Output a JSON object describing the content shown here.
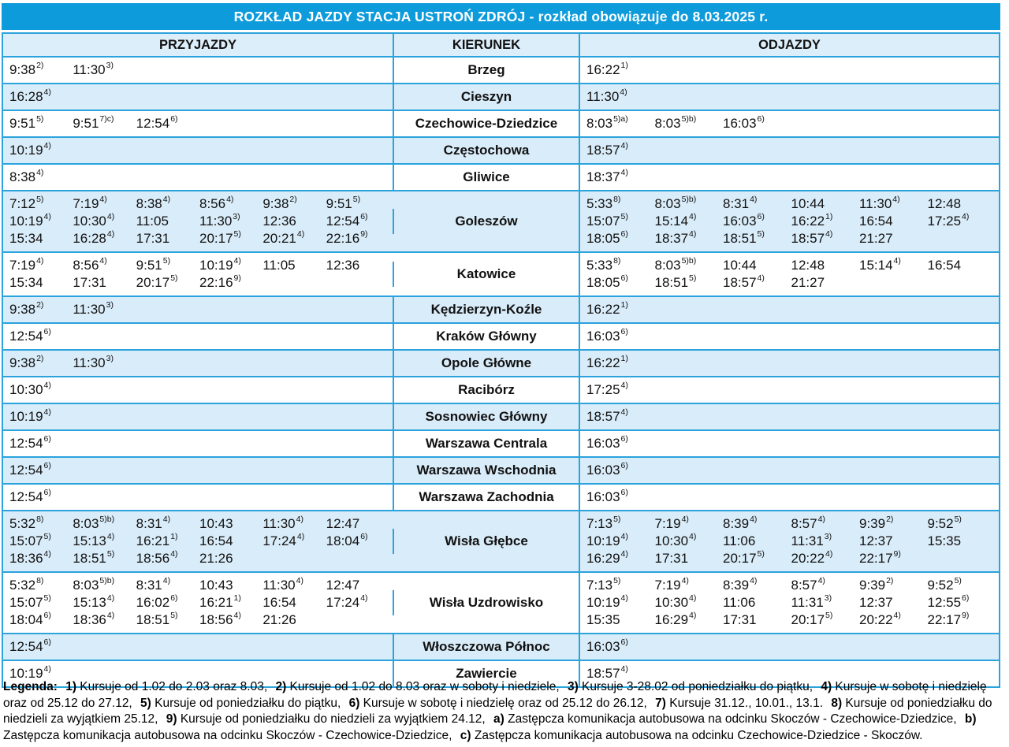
{
  "title": "ROZKŁAD JAZDY STACJA USTROŃ ZDRÓJ - rozkład obowiązuje do 8.03.2025 r.",
  "station": "Ustroń Zdrój",
  "valid_until": "8.03.2025",
  "columns": {
    "arrivals": "PRZYJAZDY",
    "direction": "KIERUNEK",
    "departures": "ODJAZDY"
  },
  "colors": {
    "title_bar": "#0e9bdb",
    "border": "#2ba3dc",
    "shaded_row": "#d9ecf9",
    "header_row": "#dceefa",
    "text": "#111111",
    "title_text": "#ffffff"
  },
  "rows": [
    {
      "direction": "Brzeg",
      "arrivals": [
        "9:38^2)",
        "11:30^3)"
      ],
      "departures": [
        "16:22^1)"
      ]
    },
    {
      "direction": "Cieszyn",
      "arrivals": [
        "16:28^4)"
      ],
      "departures": [
        "11:30^4)"
      ]
    },
    {
      "direction": "Czechowice-Dziedzice",
      "arrivals": [
        "9:51^5)",
        "9:51^7)c)",
        "12:54^6)"
      ],
      "departures": [
        "8:03^5)a)",
        "8:03^5)b)",
        "16:03^6)"
      ]
    },
    {
      "direction": "Częstochowa",
      "arrivals": [
        "10:19^4)"
      ],
      "departures": [
        "18:57^4)"
      ]
    },
    {
      "direction": "Gliwice",
      "arrivals": [
        "8:38^4)"
      ],
      "departures": [
        "18:37^4)"
      ]
    },
    {
      "direction": "Goleszów",
      "arrivals": [
        "7:12^5)",
        "7:19^4)",
        "8:38^4)",
        "8:56^4)",
        "9:38^2)",
        "9:51^5)",
        "10:19^4)",
        "10:30^4)",
        "11:05",
        "11:30^3)",
        "12:36",
        "12:54^6)",
        "15:34",
        "16:28^4)",
        "17:31",
        "20:17^5)",
        "20:21^4)",
        "22:16^9)"
      ],
      "departures": [
        "5:33^8)",
        "8:03^5)b)",
        "8:31^4)",
        "10:44",
        "11:30^4)",
        "12:48",
        "15:07^5)",
        "15:14^4)",
        "16:03^6)",
        "16:22^1)",
        "16:54",
        "17:25^4)",
        "18:05^6)",
        "18:37^4)",
        "18:51^5)",
        "18:57^4)",
        "21:27"
      ]
    },
    {
      "direction": "Katowice",
      "arrivals": [
        "7:19^4)",
        "8:56^4)",
        "9:51^5)",
        "10:19^4)",
        "11:05",
        "12:36",
        "15:34",
        "17:31",
        "20:17^5)",
        "22:16^9)"
      ],
      "departures": [
        "5:33^8)",
        "8:03^5)b)",
        "10:44",
        "12:48",
        "15:14^4)",
        "16:54",
        "18:05^6)",
        "18:51^5)",
        "18:57^4)",
        "21:27"
      ]
    },
    {
      "direction": "Kędzierzyn-Koźle",
      "arrivals": [
        "9:38^2)",
        "11:30^3)"
      ],
      "departures": [
        "16:22^1)"
      ]
    },
    {
      "direction": "Kraków Główny",
      "arrivals": [
        "12:54^6)"
      ],
      "departures": [
        "16:03^6)"
      ]
    },
    {
      "direction": "Opole Główne",
      "arrivals": [
        "9:38^2)",
        "11:30^3)"
      ],
      "departures": [
        "16:22^1)"
      ]
    },
    {
      "direction": "Racibórz",
      "arrivals": [
        "10:30^4)"
      ],
      "departures": [
        "17:25^4)"
      ]
    },
    {
      "direction": "Sosnowiec Główny",
      "arrivals": [
        "10:19^4)"
      ],
      "departures": [
        "18:57^4)"
      ]
    },
    {
      "direction": "Warszawa Centrala",
      "arrivals": [
        "12:54^6)"
      ],
      "departures": [
        "16:03^6)"
      ]
    },
    {
      "direction": "Warszawa Wschodnia",
      "arrivals": [
        "12:54^6)"
      ],
      "departures": [
        "16:03^6)"
      ]
    },
    {
      "direction": "Warszawa Zachodnia",
      "arrivals": [
        "12:54^6)"
      ],
      "departures": [
        "16:03^6)"
      ]
    },
    {
      "direction": "Wisła Głębce",
      "arrivals": [
        "5:32^8)",
        "8:03^5)b)",
        "8:31^4)",
        "10:43",
        "11:30^4)",
        "12:47",
        "15:07^5)",
        "15:13^4)",
        "16:21^1)",
        "16:54",
        "17:24^4)",
        "18:04^6)",
        "18:36^4)",
        "18:51^5)",
        "18:56^4)",
        "21:26"
      ],
      "departures": [
        "7:13^5)",
        "7:19^4)",
        "8:39^4)",
        "8:57^4)",
        "9:39^2)",
        "9:52^5)",
        "10:19^4)",
        "10:30^4)",
        "11:06",
        "11:31^3)",
        "12:37",
        "15:35",
        "16:29^4)",
        "17:31",
        "20:17^5)",
        "20:22^4)",
        "22:17^9)"
      ]
    },
    {
      "direction": "Wisła Uzdrowisko",
      "arrivals": [
        "5:32^8)",
        "8:03^5)b)",
        "8:31^4)",
        "10:43",
        "11:30^4)",
        "12:47",
        "15:07^5)",
        "15:13^4)",
        "16:02^6)",
        "16:21^1)",
        "16:54",
        "17:24^4)",
        "18:04^6)",
        "18:36^4)",
        "18:51^5)",
        "18:56^4)",
        "21:26"
      ],
      "departures": [
        "7:13^5)",
        "7:19^4)",
        "8:39^4)",
        "8:57^4)",
        "9:39^2)",
        "9:52^5)",
        "10:19^4)",
        "10:30^4)",
        "11:06",
        "11:31^3)",
        "12:37",
        "12:55^6)",
        "15:35",
        "16:29^4)",
        "17:31",
        "20:17^5)",
        "20:22^4)",
        "22:17^9)"
      ]
    },
    {
      "direction": "Włoszczowa Północ",
      "arrivals": [
        "12:54^6)"
      ],
      "departures": [
        "16:03^6)"
      ]
    },
    {
      "direction": "Zawiercie",
      "arrivals": [
        "10:19^4)"
      ],
      "departures": [
        "18:57^4)"
      ]
    }
  ],
  "legend": {
    "label": "Legenda:",
    "items": [
      {
        "key": "1)",
        "text": "Kursuje od 1.02 do 2.03 oraz 8.03,"
      },
      {
        "key": "2)",
        "text": "Kursuje od 1.02 do 8.03 oraz w soboty i niedziele,"
      },
      {
        "key": "3)",
        "text": "Kursuje 3-28.02 od poniedziałku do piątku,"
      },
      {
        "key": "4)",
        "text": "Kursuje w sobotę i niedzielę oraz od 25.12 do 27.12,"
      },
      {
        "key": "5)",
        "text": "Kursuje od poniedziałku do piątku,"
      },
      {
        "key": "6)",
        "text": "Kursuje w sobotę i niedzielę oraz od 25.12 do 26.12,"
      },
      {
        "key": "7)",
        "text": "Kursuje 31.12., 10.01., 13.1."
      },
      {
        "key": "8)",
        "text": "Kursuje od poniedziałku do niedzieli za wyjątkiem 25.12,"
      },
      {
        "key": "9)",
        "text": "Kursuje od poniedziałku do niedzieli za wyjątkiem 24.12,"
      },
      {
        "key": "a)",
        "text": "Zastępcza komunikacja autobusowa na odcinku Skoczów - Czechowice-Dziedzice,"
      },
      {
        "key": "b)",
        "text": "Zastępcza komunikacja autobusowa na odcinku Skoczów - Czechowice-Dziedzice,"
      },
      {
        "key": "c)",
        "text": "Zastępcza komunikacja autobusowa na odcinku Czechowice-Dziedzice - Skoczów."
      }
    ]
  }
}
